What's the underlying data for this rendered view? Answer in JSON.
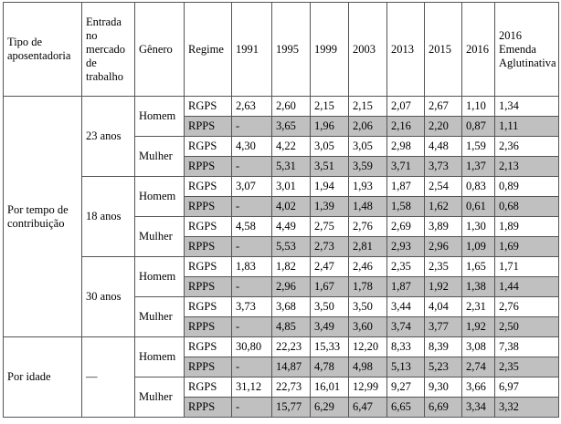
{
  "table": {
    "header": [
      "Tipo de aposentadoria",
      "Entrada no mercado de trabalho",
      "Gênero",
      "Regime",
      "1991",
      "1995",
      "1999",
      "2003",
      "2013",
      "2015",
      "2016",
      "2016 Emenda Aglutinativa"
    ],
    "groups": [
      {
        "tipo": "Por tempo de contribuição",
        "entradas": [
          {
            "entrada": "23 anos",
            "generos": [
              {
                "genero": "Homem",
                "regimes": [
                  {
                    "regime": "RGPS",
                    "values": [
                      "2,63",
                      "2,60",
                      "2,15",
                      "2,15",
                      "2,07",
                      "2,67",
                      "1,10",
                      "1,34"
                    ]
                  },
                  {
                    "regime": "RPPS",
                    "values": [
                      "-",
                      "3,65",
                      "1,96",
                      "2,06",
                      "2,16",
                      "2,20",
                      "0,87",
                      "1,11"
                    ]
                  }
                ]
              },
              {
                "genero": "Mulher",
                "regimes": [
                  {
                    "regime": "RGPS",
                    "values": [
                      "4,30",
                      "4,22",
                      "3,05",
                      "3,05",
                      "2,98",
                      "4,48",
                      "1,59",
                      "2,36"
                    ]
                  },
                  {
                    "regime": "RPPS",
                    "values": [
                      "-",
                      "5,31",
                      "3,51",
                      "3,59",
                      "3,71",
                      "3,73",
                      "1,37",
                      "2,13"
                    ]
                  }
                ]
              }
            ]
          },
          {
            "entrada": "18 anos",
            "generos": [
              {
                "genero": "Homem",
                "regimes": [
                  {
                    "regime": "RGPS",
                    "values": [
                      "3,07",
                      "3,01",
                      "1,94",
                      "1,93",
                      "1,87",
                      "2,54",
                      "0,83",
                      "0,89"
                    ]
                  },
                  {
                    "regime": "RPPS",
                    "values": [
                      "-",
                      "4,02",
                      "1,39",
                      "1,48",
                      "1,58",
                      "1,62",
                      "0,61",
                      "0,68"
                    ]
                  }
                ]
              },
              {
                "genero": "Mulher",
                "regimes": [
                  {
                    "regime": "RGPS",
                    "values": [
                      "4,58",
                      "4,49",
                      "2,75",
                      "2,76",
                      "2,69",
                      "3,89",
                      "1,30",
                      "1,89"
                    ]
                  },
                  {
                    "regime": "RPPS",
                    "values": [
                      "-",
                      "5,53",
                      "2,73",
                      "2,81",
                      "2,93",
                      "2,96",
                      "1,09",
                      "1,69"
                    ]
                  }
                ]
              }
            ]
          },
          {
            "entrada": "30 anos",
            "generos": [
              {
                "genero": "Homem",
                "regimes": [
                  {
                    "regime": "RGPS",
                    "values": [
                      "1,83",
                      "1,82",
                      "2,47",
                      "2,46",
                      "2,35",
                      "2,35",
                      "1,65",
                      "1,71"
                    ]
                  },
                  {
                    "regime": "RPPS",
                    "values": [
                      "-",
                      "2,96",
                      "1,67",
                      "1,78",
                      "1,87",
                      "1,92",
                      "1,38",
                      "1,44"
                    ]
                  }
                ]
              },
              {
                "genero": "Mulher",
                "regimes": [
                  {
                    "regime": "RGPS",
                    "values": [
                      "3,73",
                      "3,68",
                      "3,50",
                      "3,50",
                      "3,44",
                      "4,04",
                      "2,31",
                      "2,76"
                    ]
                  },
                  {
                    "regime": "RPPS",
                    "values": [
                      "-",
                      "4,85",
                      "3,49",
                      "3,60",
                      "3,74",
                      "3,77",
                      "1,92",
                      "2,50"
                    ]
                  }
                ]
              }
            ]
          }
        ]
      },
      {
        "tipo": "Por idade",
        "entradas": [
          {
            "entrada": "—",
            "generos": [
              {
                "genero": "Homem",
                "regimes": [
                  {
                    "regime": "RGPS",
                    "values": [
                      "30,80",
                      "22,23",
                      "15,33",
                      "12,20",
                      "8,33",
                      "8,39",
                      "3,08",
                      "7,38"
                    ]
                  },
                  {
                    "regime": "RPPS",
                    "values": [
                      "-",
                      "14,87",
                      "4,78",
                      "4,98",
                      "5,13",
                      "5,23",
                      "2,74",
                      "2,35"
                    ]
                  }
                ]
              },
              {
                "genero": "Mulher",
                "regimes": [
                  {
                    "regime": "RGPS",
                    "values": [
                      "31,12",
                      "22,73",
                      "16,01",
                      "12,99",
                      "9,27",
                      "9,30",
                      "3,66",
                      "6,97"
                    ]
                  },
                  {
                    "regime": "RPPS",
                    "values": [
                      "-",
                      "15,77",
                      "6,29",
                      "6,47",
                      "6,65",
                      "6,69",
                      "3,34",
                      "3,32"
                    ]
                  }
                ]
              }
            ]
          }
        ]
      }
    ]
  }
}
